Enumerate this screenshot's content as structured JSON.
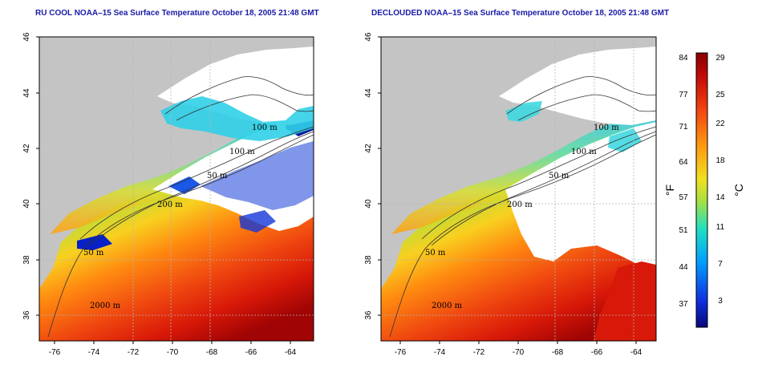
{
  "panels": [
    {
      "title": "RU COOL NOAA–15 Sea Surface Temperature October 18, 2005 21:48 GMT",
      "y_ticks": [
        "46",
        "44",
        "42",
        "40",
        "38",
        "36"
      ],
      "x_ticks": [
        "-76",
        "-74",
        "-72",
        "-70",
        "-68",
        "-66",
        "-64"
      ],
      "contour_labels": [
        "100 m",
        "100 m",
        "50 m",
        "200 m",
        "50 m",
        "2000 m"
      ],
      "clouds": "cloud-flagged pixels shown in dark blue and white"
    },
    {
      "title": "DECLOUDED NOAA–15 Sea Surface Temperature October 18, 2005 21:48 GMT",
      "y_ticks": [
        "46",
        "44",
        "42",
        "40",
        "38",
        "36"
      ],
      "x_ticks": [
        "-76",
        "-74",
        "-72",
        "-70",
        "-68",
        "-66",
        "-64"
      ],
      "contour_labels": [
        "100 m",
        "100 m",
        "50 m",
        "200 m",
        "50 m",
        "2000 m"
      ],
      "clouds": "clouds removed and shown in white"
    }
  ],
  "colorbar": {
    "f_labels": [
      "84",
      "77",
      "71",
      "64",
      "57",
      "51",
      "44",
      "37"
    ],
    "c_labels": [
      "29",
      "25",
      "22",
      "18",
      "14",
      "11",
      "7",
      "3"
    ],
    "f_unit": "°F",
    "c_unit": "°C",
    "colors": [
      "#08087a",
      "#1030e0",
      "#00a0ff",
      "#20e0c0",
      "#a8e040",
      "#f0e020",
      "#ff9a10",
      "#f04010",
      "#c00808",
      "#8a0000"
    ]
  },
  "map_colors": {
    "land": "#c4c4c4",
    "gridline": "#b4b4b4",
    "contour": "#333333"
  }
}
